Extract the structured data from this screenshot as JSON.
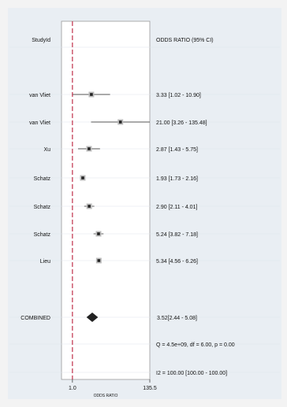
{
  "chart_data": {
    "type": "forest",
    "header": {
      "study_label": "StudyId",
      "effect_label": "ODDS RATIO (95% CI)"
    },
    "xlabel": "ODDS RATIO",
    "xticks": [
      "1.0",
      "135.5"
    ],
    "xlim": [
      0.5,
      135.5
    ],
    "reference_line": 1.0,
    "studies": [
      {
        "name": "van Vliet",
        "or": 3.33,
        "ci": [
          1.02,
          10.9
        ],
        "text": "3.33 [1.02 - 10.90]"
      },
      {
        "name": "van Vliet",
        "or": 21.0,
        "ci": [
          3.26,
          135.48
        ],
        "text": "21.00 [3.26 - 135.48]"
      },
      {
        "name": "Xu",
        "or": 2.87,
        "ci": [
          1.43,
          5.75
        ],
        "text": "2.87 [1.43 - 5.75]"
      },
      {
        "name": "Schatz",
        "or": 1.93,
        "ci": [
          1.73,
          2.16
        ],
        "text": "1.93 [1.73 - 2.16]"
      },
      {
        "name": "Schatz",
        "or": 2.9,
        "ci": [
          2.11,
          4.01
        ],
        "text": "2.90 [2.11 - 4.01]"
      },
      {
        "name": "Schatz",
        "or": 5.24,
        "ci": [
          3.82,
          7.18
        ],
        "text": "5.24 [3.82 - 7.18]"
      },
      {
        "name": "Lieu",
        "or": 5.34,
        "ci": [
          4.56,
          6.26
        ],
        "text": "5.34 [4.56 - 6.26]"
      }
    ],
    "combined": {
      "name": "COMBINED",
      "or": 3.52,
      "ci": [
        2.44,
        5.08
      ],
      "text": "3.52[2.44 - 5.08]"
    },
    "heterogeneity": {
      "q_text": "Q = 4.5e+09, df = 6.00, p =  0.00",
      "i2_text": "I2 = 100.00 [100.00 - 100.00]"
    },
    "colors": {
      "panel_background": "#e9eef3",
      "plot_background": "#ffffff",
      "reference_line": "#c0304a",
      "ci_line": "#555555",
      "marker_fill": "#222222",
      "marker_box": "#bdbdbd"
    }
  }
}
